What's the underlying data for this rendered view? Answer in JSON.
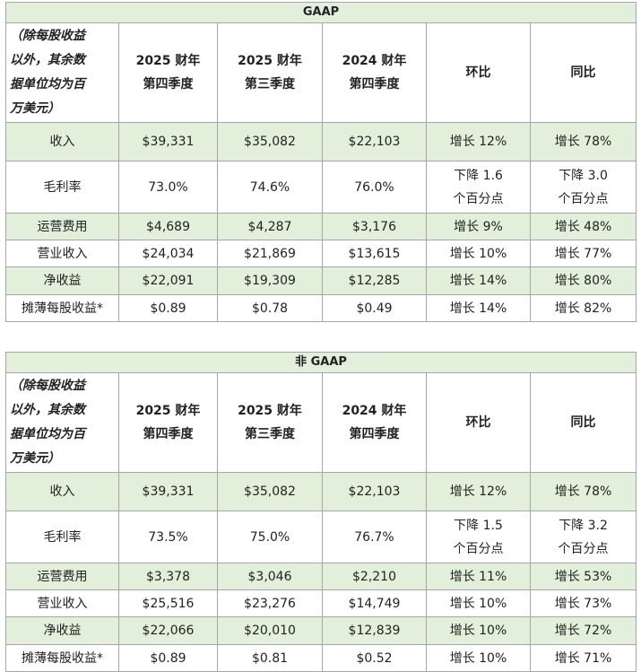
{
  "tables": [
    {
      "title": "GAAP",
      "header": [
        [
          "（除每股收益",
          "以外，其余数",
          "据单位均为百",
          "万美元）"
        ],
        [
          "2025 财年",
          "第四季度"
        ],
        [
          "2025 财年",
          "第三季度"
        ],
        [
          "2024 财年",
          "第四季度"
        ],
        [
          "环比"
        ],
        [
          "同比"
        ]
      ],
      "rows": [
        [
          [
            "收入"
          ],
          [
            "$39,331"
          ],
          [
            "$35,082"
          ],
          [
            "$22,103"
          ],
          [
            "增长 12%"
          ],
          [
            "增长 78%"
          ]
        ],
        [
          [
            "毛利率"
          ],
          [
            "73.0%"
          ],
          [
            "74.6%"
          ],
          [
            "76.0%"
          ],
          [
            "下降 1.6",
            "个百分点"
          ],
          [
            "下降 3.0",
            "个百分点"
          ]
        ],
        [
          [
            "运营费用"
          ],
          [
            "$4,689"
          ],
          [
            "$4,287"
          ],
          [
            "$3,176"
          ],
          [
            "增长 9%"
          ],
          [
            "增长 48%"
          ]
        ],
        [
          [
            "营业收入"
          ],
          [
            "$24,034"
          ],
          [
            "$21,869"
          ],
          [
            "$13,615"
          ],
          [
            "增长 10%"
          ],
          [
            "增长 77%"
          ]
        ],
        [
          [
            "净收益"
          ],
          [
            "$22,091"
          ],
          [
            "$19,309"
          ],
          [
            "$12,285"
          ],
          [
            "增长 14%"
          ],
          [
            "增长 80%"
          ]
        ],
        [
          [
            "摊薄每股收益*"
          ],
          [
            "$0.89"
          ],
          [
            "$0.78"
          ],
          [
            "$0.49"
          ],
          [
            "增长 14%"
          ],
          [
            "增长 82%"
          ]
        ]
      ]
    },
    {
      "title": "非 GAAP",
      "header": [
        [
          "（除每股收益",
          "以外，其余数",
          "据单位均为百",
          "万美元）"
        ],
        [
          "2025 财年",
          "第四季度"
        ],
        [
          "2025 财年",
          "第三季度"
        ],
        [
          "2024 财年",
          "第四季度"
        ],
        [
          "环比"
        ],
        [
          "同比"
        ]
      ],
      "rows": [
        [
          [
            "收入"
          ],
          [
            "$39,331"
          ],
          [
            "$35,082"
          ],
          [
            "$22,103"
          ],
          [
            "增长 12%"
          ],
          [
            "增长 78%"
          ]
        ],
        [
          [
            "毛利率"
          ],
          [
            "73.5%"
          ],
          [
            "75.0%"
          ],
          [
            "76.7%"
          ],
          [
            "下降 1.5",
            "个百分点"
          ],
          [
            "下降 3.2",
            "个百分点"
          ]
        ],
        [
          [
            "运营费用"
          ],
          [
            "$3,378"
          ],
          [
            "$3,046"
          ],
          [
            "$2,210"
          ],
          [
            "增长 11%"
          ],
          [
            "增长 53%"
          ]
        ],
        [
          [
            "营业收入"
          ],
          [
            "$25,516"
          ],
          [
            "$23,276"
          ],
          [
            "$14,749"
          ],
          [
            "增长 10%"
          ],
          [
            "增长 73%"
          ]
        ],
        [
          [
            "净收益"
          ],
          [
            "$22,066"
          ],
          [
            "$20,010"
          ],
          [
            "$12,839"
          ],
          [
            "增长 10%"
          ],
          [
            "增长 72%"
          ]
        ],
        [
          [
            "摊薄每股收益*"
          ],
          [
            "$0.89"
          ],
          [
            "$0.81"
          ],
          [
            "$0.52"
          ],
          [
            "增长 10%"
          ],
          [
            "增长 71%"
          ]
        ]
      ]
    }
  ]
}
